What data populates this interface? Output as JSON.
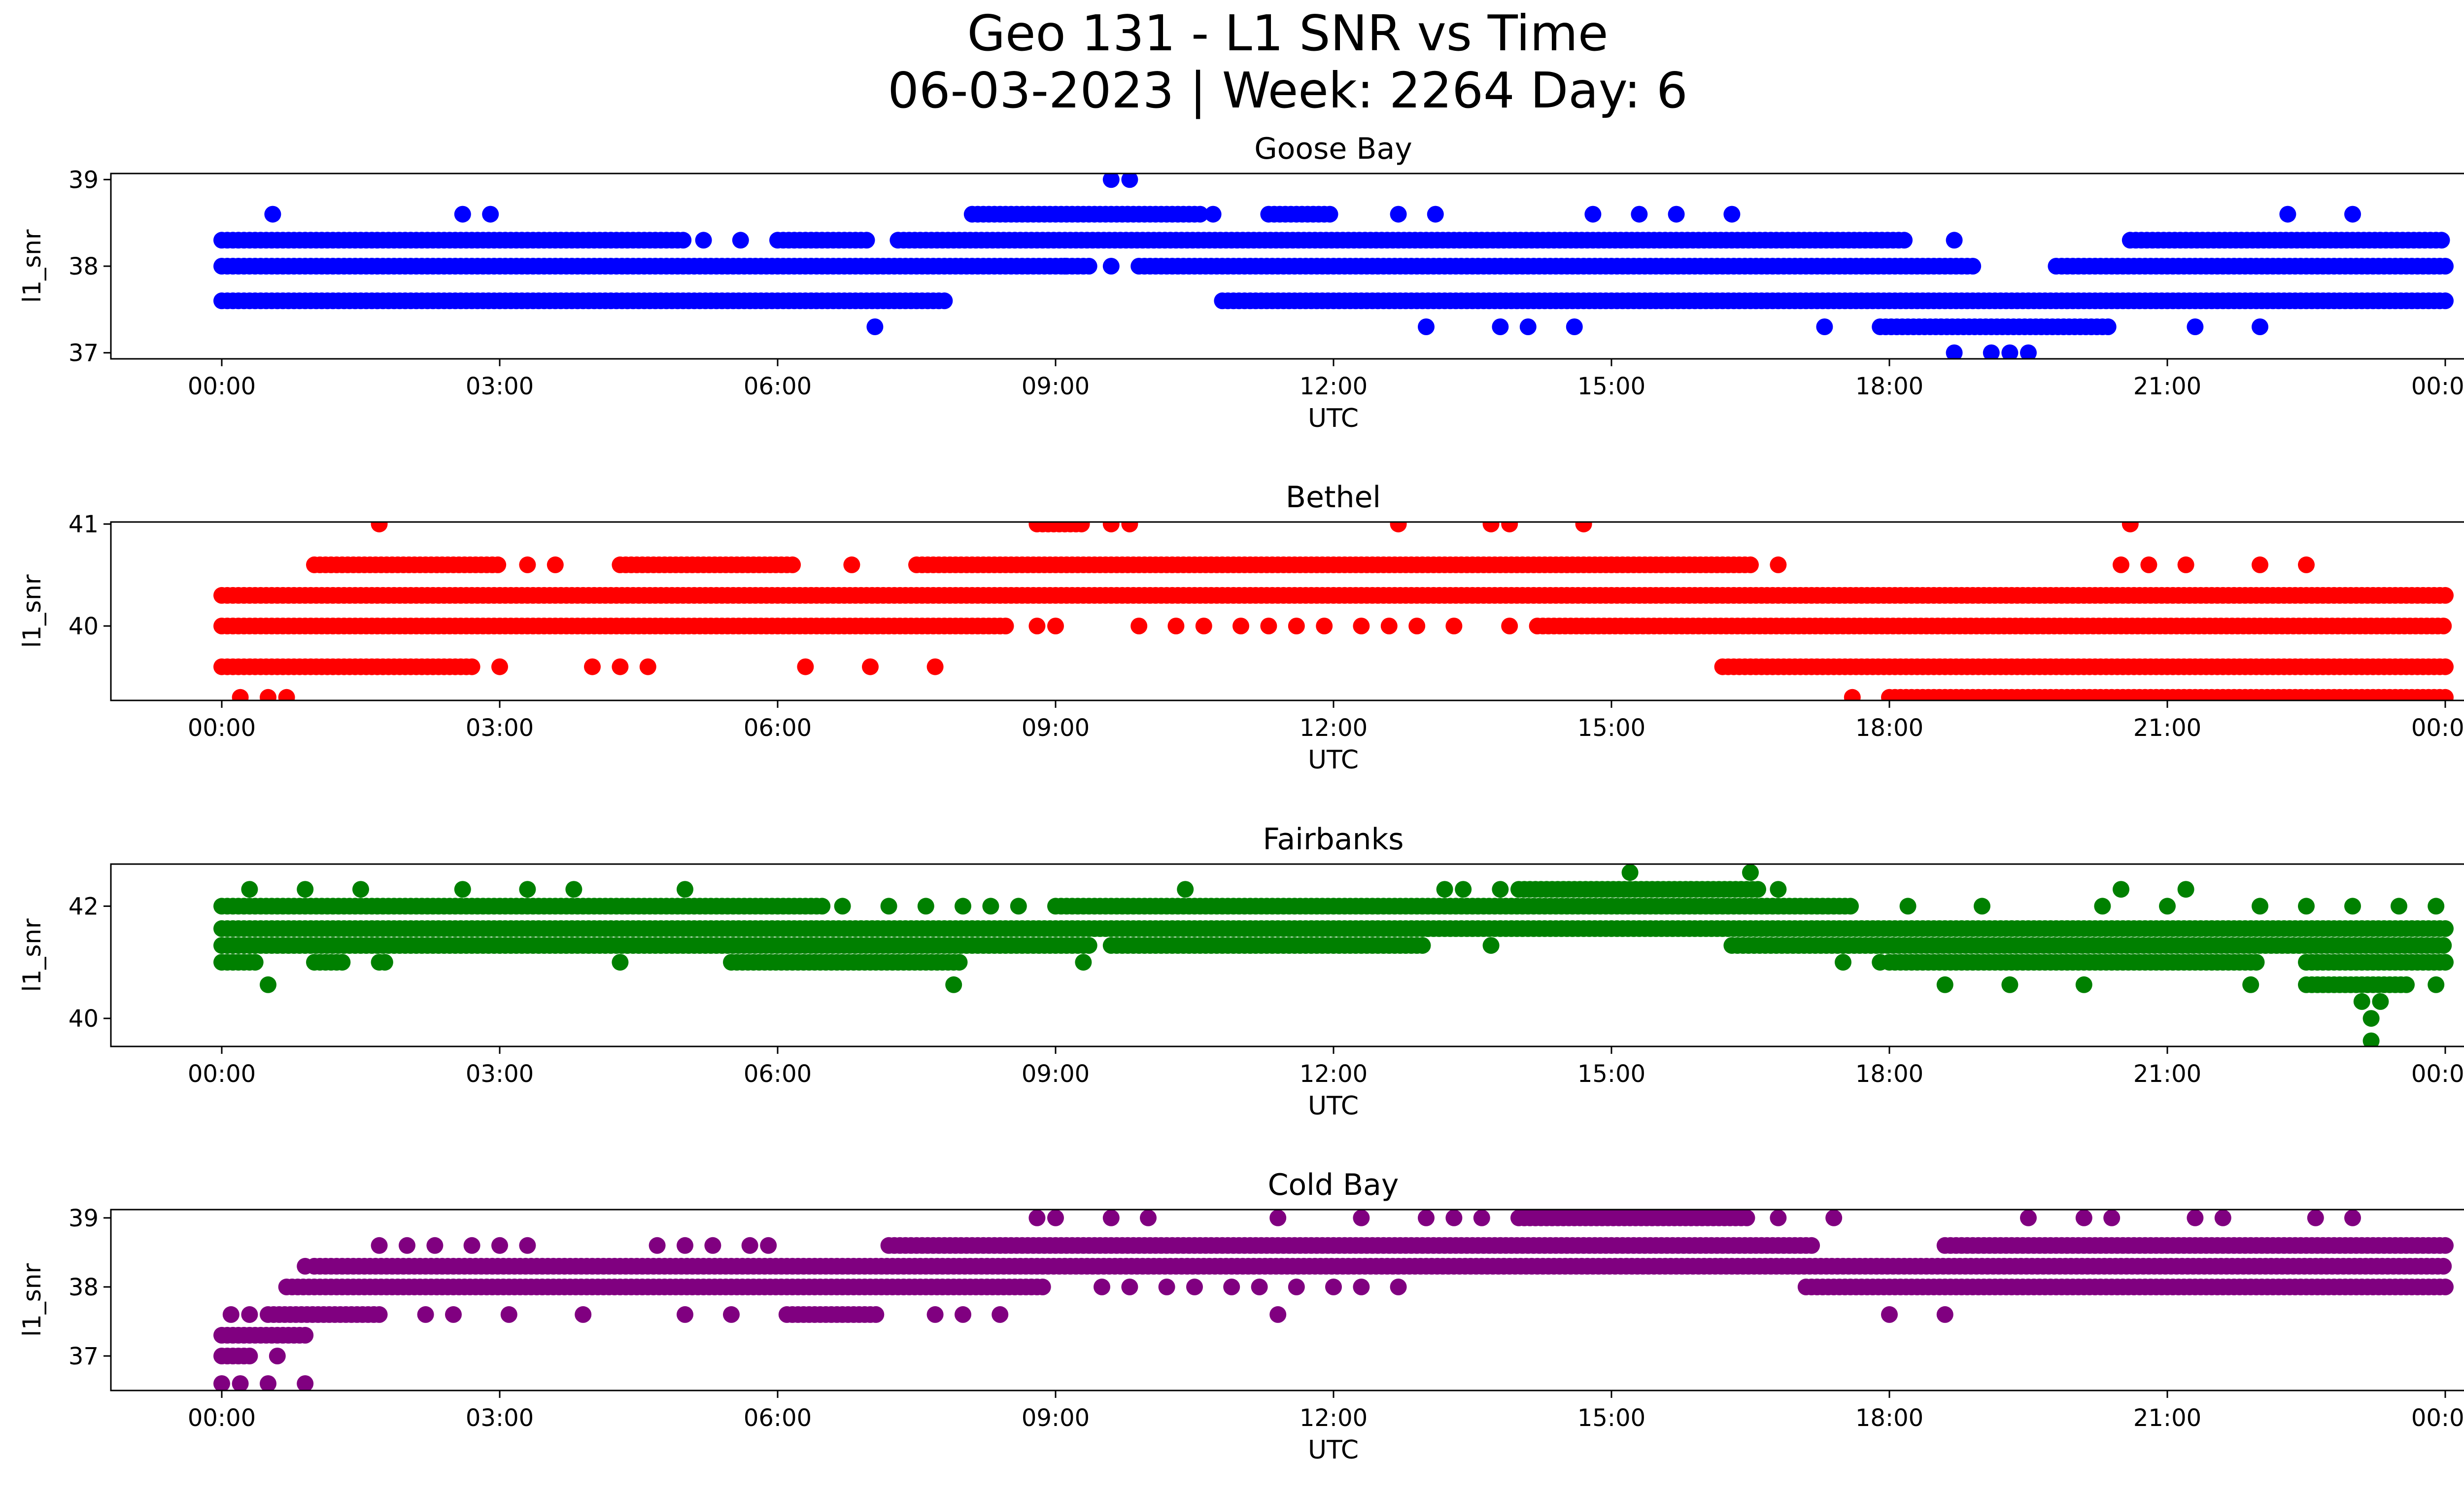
{
  "figure": {
    "title_line1": "Geo 131 - L1 SNR vs Time",
    "title_line2": "06-03-2023 | Week: 2264 Day: 6"
  },
  "chart_data": [
    {
      "type": "scatter",
      "title": "Goose Bay",
      "xlabel": "UTC",
      "ylabel": "l1_snr",
      "color": "#0000ff",
      "x_ticks": [
        "00:00",
        "03:00",
        "06:00",
        "09:00",
        "12:00",
        "15:00",
        "18:00",
        "21:00",
        "00:00"
      ],
      "y_ticks": [
        37,
        38,
        39
      ],
      "ylim": [
        36.93,
        39.07
      ],
      "series": [
        {
          "y": 38.0,
          "segments": [
            [
              0.0,
              9.4
            ],
            [
              9.9,
              18.9
            ],
            [
              19.8,
              24.0
            ]
          ],
          "singles": [
            9.1,
            9.6
          ]
        },
        {
          "y": 37.6,
          "segments": [
            [
              0.0,
              7.8
            ],
            [
              10.8,
              24.0
            ]
          ],
          "singles": []
        },
        {
          "y": 38.3,
          "segments": [
            [
              0.0,
              5.0
            ],
            [
              6.0,
              7.0
            ],
            [
              7.3,
              18.2
            ],
            [
              20.6,
              24.0
            ]
          ],
          "singles": [
            5.2,
            5.6,
            18.7
          ]
        },
        {
          "y": 38.6,
          "segments": [
            [
              8.1,
              10.6
            ],
            [
              11.3,
              12.0
            ]
          ],
          "singles": [
            0.55,
            2.6,
            2.9,
            10.7,
            12.7,
            13.1,
            14.8,
            15.3,
            15.7,
            16.3,
            22.3,
            23.0
          ]
        },
        {
          "y": 37.3,
          "segments": [
            [
              17.9,
              20.4
            ]
          ],
          "singles": [
            7.05,
            13.0,
            13.8,
            14.1,
            14.6,
            17.3,
            21.3,
            22.0
          ]
        },
        {
          "y": 39.0,
          "segments": [],
          "singles": [
            9.6,
            9.8
          ]
        },
        {
          "y": 37.0,
          "segments": [],
          "singles": [
            18.7,
            19.1,
            19.3,
            19.5
          ]
        }
      ]
    },
    {
      "type": "scatter",
      "title": "Bethel",
      "xlabel": "UTC",
      "ylabel": "l1_snr",
      "color": "#ff0000",
      "x_ticks": [
        "00:00",
        "03:00",
        "06:00",
        "09:00",
        "12:00",
        "15:00",
        "18:00",
        "21:00",
        "00:00"
      ],
      "y_ticks": [
        40,
        41
      ],
      "ylim": [
        39.27,
        41.02
      ],
      "series": [
        {
          "y": 40.3,
          "segments": [
            [
              0.0,
              24.0
            ]
          ],
          "singles": []
        },
        {
          "y": 40.0,
          "segments": [
            [
              0.0,
              8.5
            ],
            [
              14.2,
              24.0
            ]
          ],
          "singles": [
            8.8,
            9.0,
            9.9,
            10.3,
            10.6,
            11.0,
            11.3,
            11.6,
            11.9,
            12.3,
            12.6,
            12.9,
            13.3,
            13.9
          ]
        },
        {
          "y": 39.6,
          "segments": [
            [
              0.0,
              2.7
            ],
            [
              16.2,
              24.0
            ]
          ],
          "singles": [
            3.0,
            4.0,
            4.3,
            4.6,
            6.3,
            7.0,
            7.7
          ]
        },
        {
          "y": 40.6,
          "segments": [
            [
              1.0,
              3.0
            ],
            [
              4.3,
              6.2
            ],
            [
              7.5,
              16.5
            ]
          ],
          "singles": [
            3.3,
            3.6,
            6.8,
            16.8,
            20.5,
            20.8,
            21.2,
            22.0,
            22.5
          ]
        },
        {
          "y": 39.3,
          "segments": [
            [
              18.0,
              24.0
            ]
          ],
          "singles": [
            0.2,
            0.5,
            0.7,
            17.6
          ]
        },
        {
          "y": 41.0,
          "segments": [
            [
              8.8,
              9.3
            ]
          ],
          "singles": [
            1.7,
            9.6,
            9.8,
            12.7,
            13.7,
            13.9,
            14.7,
            20.6
          ]
        }
      ]
    },
    {
      "type": "scatter",
      "title": "Fairbanks",
      "xlabel": "UTC",
      "ylabel": "l1_snr",
      "color": "#008000",
      "x_ticks": [
        "00:00",
        "03:00",
        "06:00",
        "09:00",
        "12:00",
        "15:00",
        "18:00",
        "21:00",
        "00:00"
      ],
      "y_ticks": [
        40,
        42
      ],
      "ylim": [
        39.5,
        42.75
      ],
      "series": [
        {
          "y": 41.6,
          "segments": [
            [
              0.0,
              24.0
            ]
          ],
          "singles": []
        },
        {
          "y": 41.3,
          "segments": [
            [
              0.0,
              9.4
            ],
            [
              9.6,
              13.0
            ],
            [
              16.3,
              24.0
            ]
          ],
          "singles": [
            13.7
          ]
        },
        {
          "y": 42.0,
          "segments": [
            [
              0.0,
              6.5
            ],
            [
              9.0,
              17.6
            ]
          ],
          "singles": [
            6.7,
            7.2,
            7.6,
            8.0,
            8.3,
            8.6,
            18.2,
            19.0,
            20.3,
            21.0,
            22.0,
            22.5,
            23.0,
            23.5,
            23.9
          ]
        },
        {
          "y": 41.0,
          "segments": [
            [
              0.0,
              0.4
            ],
            [
              1.0,
              1.3
            ],
            [
              1.7,
              1.8
            ],
            [
              5.5,
              8.0
            ],
            [
              18.0,
              22.0
            ],
            [
              22.5,
              24.0
            ]
          ],
          "singles": [
            4.3,
            9.3,
            17.5,
            17.9
          ]
        },
        {
          "y": 42.3,
          "segments": [
            [
              14.0,
              16.6
            ]
          ],
          "singles": [
            0.3,
            0.9,
            1.5,
            2.6,
            3.3,
            3.8,
            5.0,
            10.4,
            13.2,
            13.4,
            13.8,
            16.8,
            20.5,
            21.2
          ]
        },
        {
          "y": 40.6,
          "segments": [
            [
              22.5,
              23.6
            ]
          ],
          "singles": [
            0.5,
            7.9,
            18.6,
            19.3,
            20.1,
            21.9,
            23.9
          ]
        },
        {
          "y": 42.6,
          "segments": [],
          "singles": [
            15.2,
            16.5
          ]
        },
        {
          "y": 40.3,
          "segments": [],
          "singles": [
            23.1,
            23.3
          ]
        },
        {
          "y": 40.0,
          "segments": [],
          "singles": [
            23.2
          ]
        },
        {
          "y": 39.6,
          "segments": [],
          "singles": [
            23.2
          ]
        }
      ]
    },
    {
      "type": "scatter",
      "title": "Cold Bay",
      "xlabel": "UTC",
      "ylabel": "l1_snr",
      "color": "#800080",
      "x_ticks": [
        "00:00",
        "03:00",
        "06:00",
        "09:00",
        "12:00",
        "15:00",
        "18:00",
        "21:00",
        "00:00"
      ],
      "y_ticks": [
        37,
        38,
        39
      ],
      "ylim": [
        36.5,
        39.12
      ],
      "series": [
        {
          "y": 38.3,
          "segments": [
            [
              1.0,
              24.0
            ]
          ],
          "singles": []
        },
        {
          "y": 38.0,
          "segments": [
            [
              0.7,
              8.9
            ],
            [
              17.1,
              24.0
            ]
          ],
          "singles": [
            9.5,
            9.8,
            10.2,
            10.5,
            10.9,
            11.2,
            11.6,
            12.0,
            12.3,
            12.7
          ]
        },
        {
          "y": 38.6,
          "segments": [
            [
              7.2,
              17.2
            ],
            [
              18.6,
              24.0
            ]
          ],
          "singles": [
            1.7,
            2.0,
            2.3,
            2.7,
            3.0,
            3.3,
            4.7,
            5.0,
            5.3,
            5.7,
            5.9
          ]
        },
        {
          "y": 37.6,
          "segments": [
            [
              0.5,
              1.7
            ],
            [
              6.1,
              7.1
            ]
          ],
          "singles": [
            0.1,
            0.3,
            2.2,
            2.5,
            3.1,
            3.9,
            5.0,
            5.5,
            7.7,
            8.0,
            8.4,
            11.4,
            18.0,
            18.6
          ]
        },
        {
          "y": 37.3,
          "segments": [
            [
              0.0,
              0.9
            ]
          ],
          "singles": []
        },
        {
          "y": 37.0,
          "segments": [
            [
              0.0,
              0.3
            ]
          ],
          "singles": [
            0.6
          ]
        },
        {
          "y": 36.6,
          "segments": [],
          "singles": [
            0.0,
            0.2,
            0.5,
            0.9
          ]
        },
        {
          "y": 39.0,
          "segments": [
            [
              14.0,
              16.5
            ]
          ],
          "singles": [
            8.8,
            9.0,
            9.6,
            10.0,
            11.4,
            12.3,
            13.0,
            13.3,
            13.6,
            16.8,
            17.4,
            19.5,
            20.1,
            20.4,
            21.3,
            21.6,
            22.6,
            23.0
          ]
        },
        {
          "y": 38.3,
          "segments": [],
          "singles": [
            0.9
          ]
        }
      ]
    }
  ]
}
